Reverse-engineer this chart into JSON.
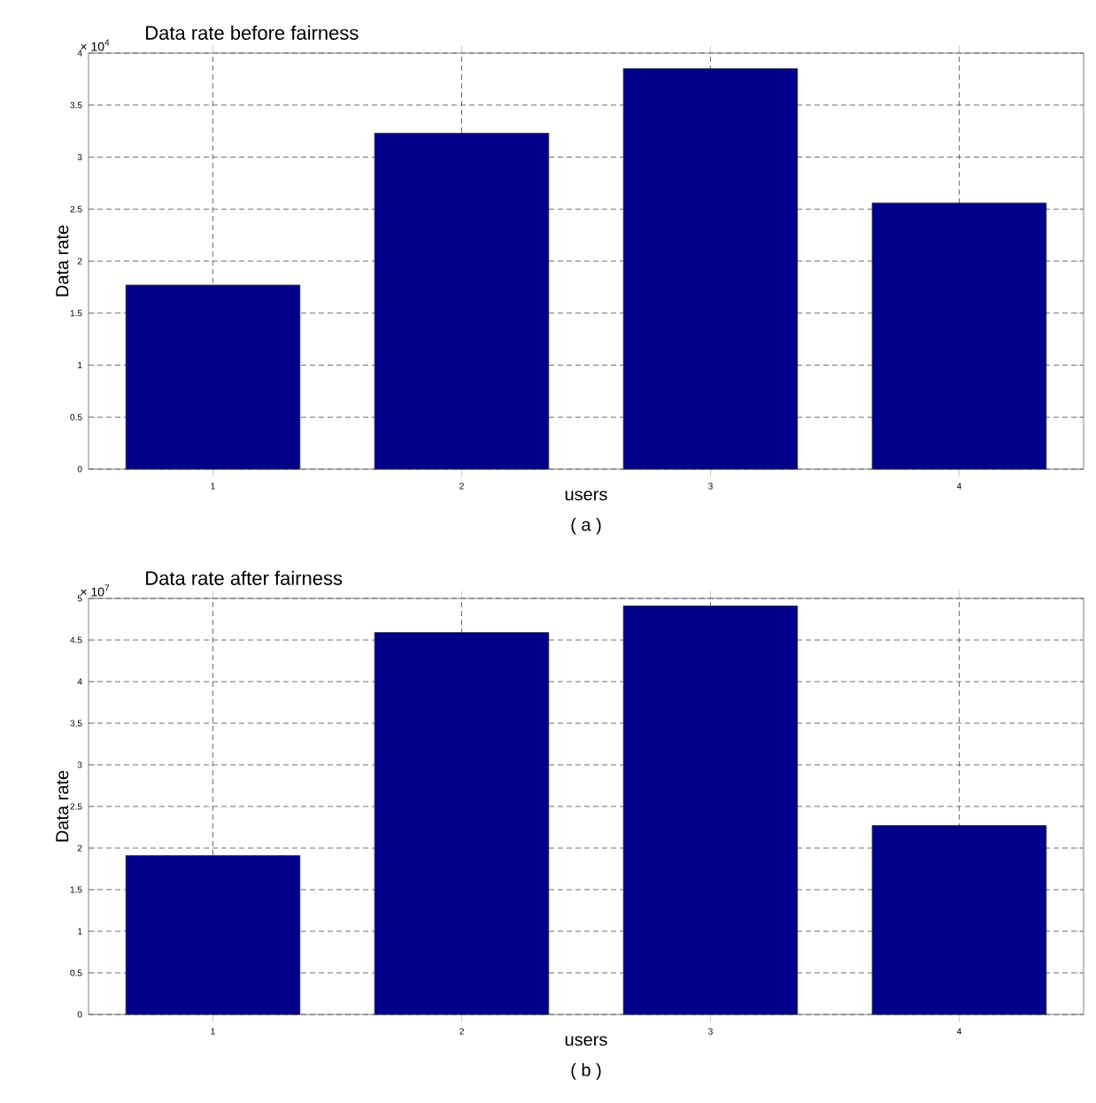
{
  "chart_data": [
    {
      "type": "bar",
      "title": "Data rate before fairness",
      "xlabel": "users",
      "ylabel": "Data rate",
      "categories": [
        "1",
        "2",
        "3",
        "4"
      ],
      "values": [
        1.77,
        3.23,
        3.85,
        2.56
      ],
      "color": "#00008b",
      "ylim": [
        0,
        4
      ],
      "yticks": [
        0,
        0.5,
        1,
        1.5,
        2,
        2.5,
        3,
        3.5,
        4
      ],
      "grid": true,
      "annotations": [
        "× 10$^{4}$",
        "( a )"
      ]
    },
    {
      "type": "bar",
      "title": "Data rate after fairness",
      "xlabel": "users",
      "ylabel": "Data rate",
      "categories": [
        "1",
        "2",
        "3",
        "4"
      ],
      "values": [
        1.91,
        4.59,
        4.91,
        2.27
      ],
      "color": "#00008b",
      "ylim": [
        0,
        5
      ],
      "yticks": [
        0,
        0.5,
        1,
        1.5,
        2,
        2.5,
        3,
        3.5,
        4,
        4.5,
        5
      ],
      "grid": true,
      "annotations": [
        "× 10$^{7}$",
        "( b )"
      ]
    }
  ]
}
